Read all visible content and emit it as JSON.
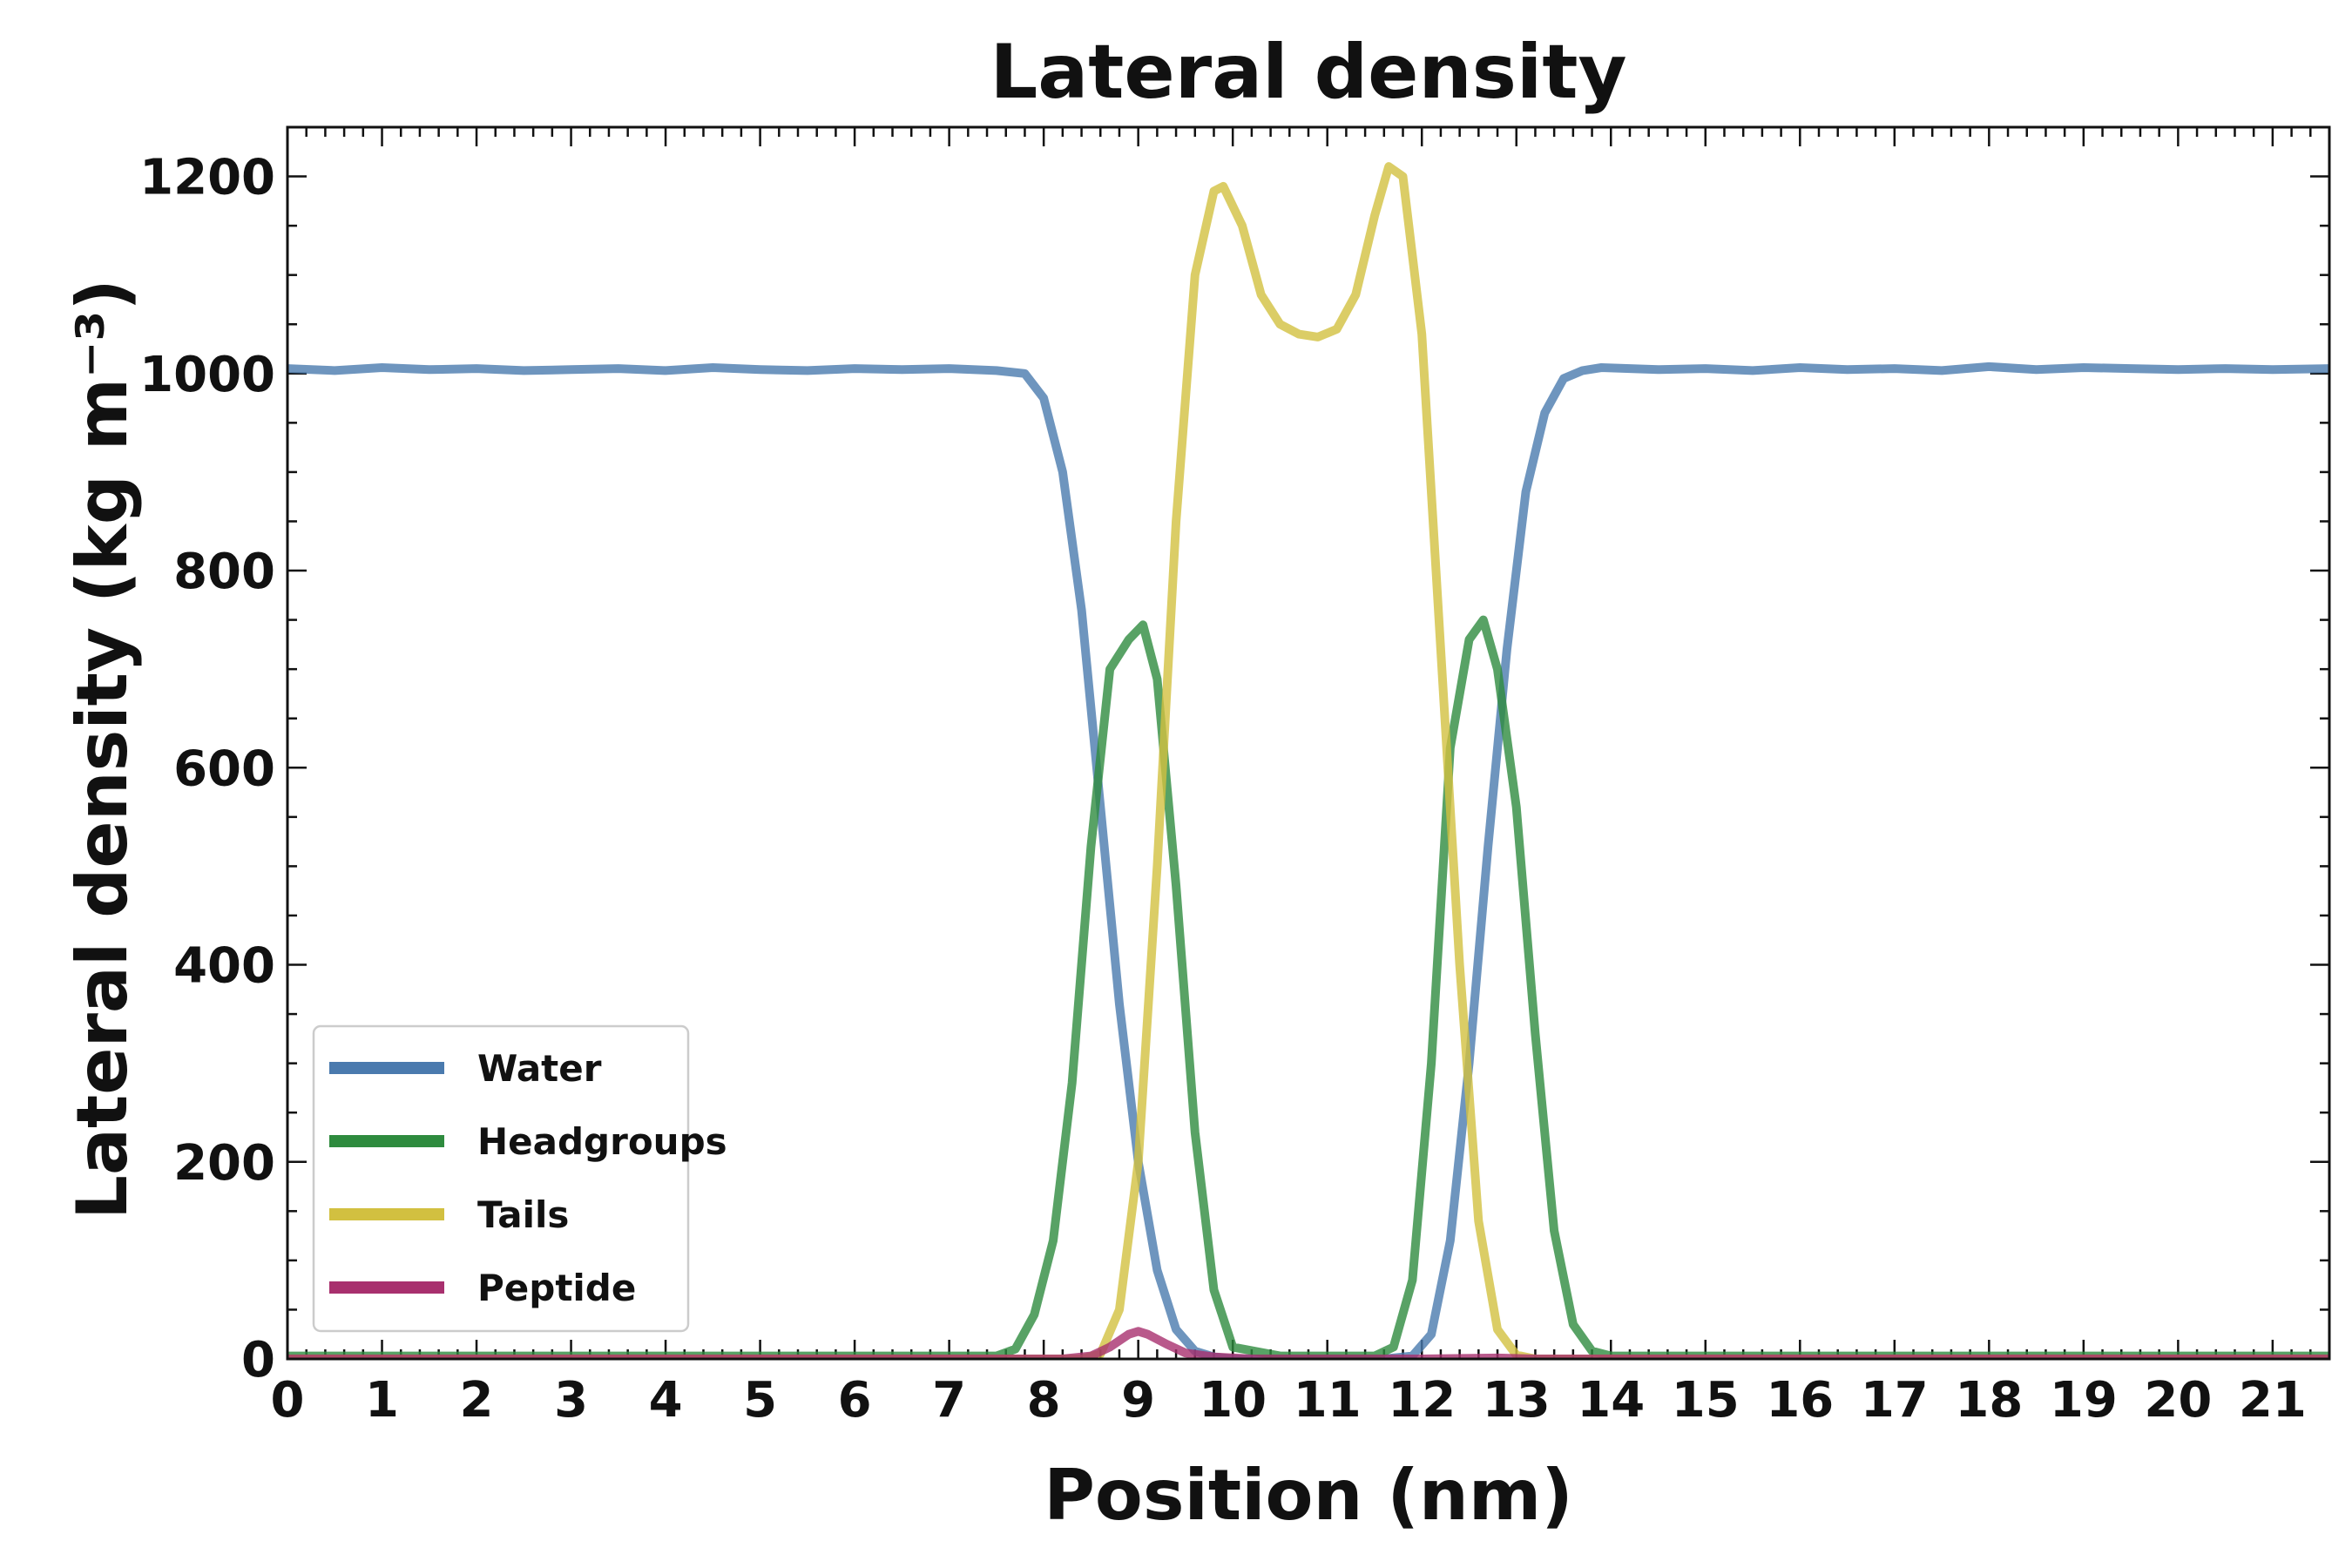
{
  "chart_data": {
    "type": "line",
    "title": "Lateral density",
    "xlabel": "Position (nm)",
    "ylabel": "Lateral density (kg m⁻³)",
    "xlim": [
      0,
      21.6
    ],
    "ylim": [
      0,
      1250
    ],
    "x_ticks": [
      0,
      1,
      2,
      3,
      4,
      5,
      6,
      7,
      8,
      9,
      10,
      11,
      12,
      13,
      14,
      15,
      16,
      17,
      18,
      19,
      20,
      21
    ],
    "y_ticks": [
      0,
      200,
      400,
      600,
      800,
      1000,
      1200
    ],
    "grid": false,
    "legend_position": "lower-left",
    "series": [
      {
        "name": "Water",
        "color": "#4a7aae",
        "x": [
          0,
          0.5,
          1,
          1.5,
          2,
          2.5,
          3,
          3.5,
          4,
          4.5,
          5,
          5.5,
          6,
          6.5,
          7,
          7.5,
          7.8,
          8.0,
          8.2,
          8.4,
          8.6,
          8.8,
          9.0,
          9.2,
          9.4,
          9.6,
          9.8,
          10.0,
          11.0,
          11.6,
          11.9,
          12.1,
          12.3,
          12.5,
          12.7,
          12.9,
          13.1,
          13.3,
          13.5,
          13.7,
          13.9,
          14.2,
          14.5,
          15,
          15.5,
          16,
          16.5,
          17,
          17.5,
          18,
          18.5,
          19,
          19.5,
          20,
          20.5,
          21,
          21.6
        ],
        "y": [
          1005,
          1003,
          1006,
          1004,
          1005,
          1003,
          1004,
          1005,
          1003,
          1006,
          1004,
          1003,
          1005,
          1004,
          1005,
          1003,
          1000,
          975,
          900,
          760,
          560,
          360,
          200,
          90,
          30,
          8,
          2,
          0,
          0,
          0,
          3,
          25,
          120,
          300,
          520,
          720,
          880,
          960,
          995,
          1003,
          1006,
          1005,
          1004,
          1005,
          1003,
          1006,
          1004,
          1005,
          1003,
          1007,
          1004,
          1006,
          1005,
          1004,
          1005,
          1004,
          1005
        ]
      },
      {
        "name": "Headgroups",
        "color": "#2e8b3e",
        "x": [
          0,
          7.5,
          7.7,
          7.9,
          8.1,
          8.3,
          8.5,
          8.7,
          8.9,
          9.05,
          9.2,
          9.4,
          9.6,
          9.8,
          10.0,
          10.5,
          11.0,
          11.5,
          11.7,
          11.9,
          12.1,
          12.3,
          12.5,
          12.65,
          12.8,
          13.0,
          13.2,
          13.4,
          13.6,
          13.8,
          14.0,
          15,
          21.6
        ],
        "y": [
          3,
          3,
          10,
          45,
          120,
          280,
          520,
          700,
          730,
          745,
          690,
          480,
          230,
          70,
          12,
          3,
          3,
          3,
          12,
          80,
          300,
          620,
          730,
          750,
          700,
          560,
          330,
          130,
          35,
          8,
          3,
          3,
          3
        ]
      },
      {
        "name": "Tails",
        "color": "#d2c040",
        "x": [
          0,
          8.4,
          8.6,
          8.8,
          9.0,
          9.2,
          9.4,
          9.6,
          9.8,
          9.9,
          10.1,
          10.3,
          10.5,
          10.7,
          10.9,
          11.1,
          11.3,
          11.5,
          11.65,
          11.8,
          12.0,
          12.2,
          12.4,
          12.6,
          12.8,
          13.0,
          13.2,
          21.6
        ],
        "y": [
          0,
          0,
          5,
          50,
          200,
          500,
          850,
          1100,
          1185,
          1190,
          1150,
          1080,
          1050,
          1040,
          1037,
          1045,
          1080,
          1160,
          1210,
          1200,
          1040,
          720,
          400,
          140,
          30,
          4,
          0,
          0
        ]
      },
      {
        "name": "Peptide",
        "color": "#a8306e",
        "x": [
          0,
          8.2,
          8.5,
          8.7,
          8.9,
          9.0,
          9.1,
          9.3,
          9.5,
          9.8,
          10.2,
          12.0,
          12.8,
          13.2,
          21.6
        ],
        "y": [
          0,
          0,
          3,
          12,
          25,
          28,
          25,
          15,
          6,
          2,
          0,
          0,
          1,
          0,
          0
        ]
      }
    ]
  }
}
